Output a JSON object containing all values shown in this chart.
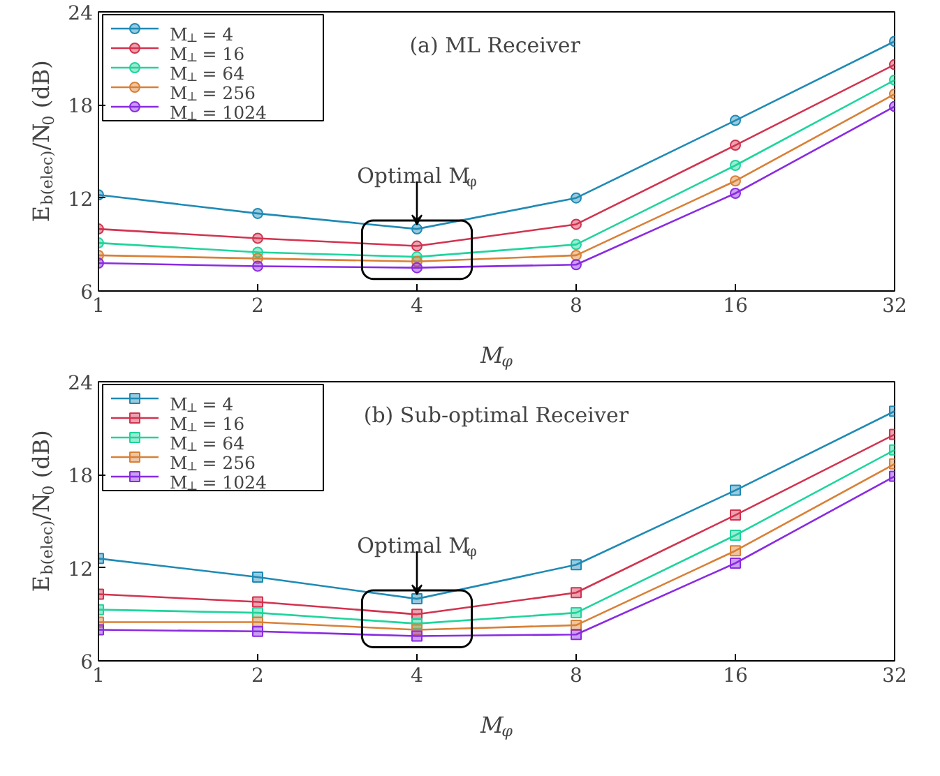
{
  "chart_data": [
    {
      "type": "line",
      "title": "(a) ML Receiver",
      "xlabel": "M$_{φ}$",
      "ylabel": "E$_{b(elec)}$/N$_{0}$ (dB)",
      "x": [
        1,
        2,
        4,
        8,
        16,
        32
      ],
      "log": "x",
      "xlim": [
        1,
        32
      ],
      "xticks": [
        1,
        2,
        4,
        8,
        16,
        32
      ],
      "ylim": [
        6,
        24
      ],
      "yticks": [
        6,
        12,
        18,
        24
      ],
      "grid": false,
      "legend": "top left",
      "marker": "circle",
      "line_style": "solid",
      "annotations": [
        {
          "text": "Optimal M$_{φ}$",
          "x": 4,
          "y": 10.0
        }
      ],
      "series": [
        {
          "name": "M$_{⊥}$ = 4",
          "color": "#1f8ab5",
          "values": [
            12.2,
            11.0,
            10.0,
            12.0,
            17.0,
            22.1
          ]
        },
        {
          "name": "M$_{⊥}$ = 16",
          "color": "#d2334f",
          "values": [
            10.0,
            9.4,
            8.9,
            10.3,
            15.4,
            20.6
          ]
        },
        {
          "name": "M$_{⊥}$ = 64",
          "color": "#1fd49c",
          "values": [
            9.1,
            8.5,
            8.2,
            9.0,
            14.1,
            19.6
          ]
        },
        {
          "name": "M$_{⊥}$ = 256",
          "color": "#d98036",
          "values": [
            8.3,
            8.1,
            7.9,
            8.3,
            13.1,
            18.7
          ]
        },
        {
          "name": "M$_{⊥}$ = 1024",
          "color": "#8a2be2",
          "values": [
            7.8,
            7.6,
            7.5,
            7.7,
            12.3,
            17.9
          ]
        }
      ]
    },
    {
      "type": "line",
      "title": "(b) Sub-optimal Receiver",
      "xlabel": "M$_{φ}$",
      "ylabel": "E$_{b(elec)}$/N$_{0}$ (dB)",
      "x": [
        1,
        2,
        4,
        8,
        16,
        32
      ],
      "log": "x",
      "xlim": [
        1,
        32
      ],
      "xticks": [
        1,
        2,
        4,
        8,
        16,
        32
      ],
      "ylim": [
        6,
        24
      ],
      "yticks": [
        6,
        12,
        18,
        24
      ],
      "grid": false,
      "legend": "top left",
      "marker": "square",
      "line_style": "solid",
      "annotations": [
        {
          "text": "Optimal M$_{φ}$",
          "x": 4,
          "y": 10.0
        }
      ],
      "series": [
        {
          "name": "M$_{⊥}$ = 4",
          "color": "#1f8ab5",
          "values": [
            12.6,
            11.4,
            10.0,
            12.2,
            17.0,
            22.1
          ]
        },
        {
          "name": "M$_{⊥}$ = 16",
          "color": "#d2334f",
          "values": [
            10.3,
            9.8,
            9.0,
            10.4,
            15.4,
            20.6
          ]
        },
        {
          "name": "M$_{⊥}$ = 64",
          "color": "#1fd49c",
          "values": [
            9.3,
            9.1,
            8.4,
            9.1,
            14.1,
            19.6
          ]
        },
        {
          "name": "M$_{⊥}$ = 256",
          "color": "#d98036",
          "values": [
            8.5,
            8.5,
            8.0,
            8.3,
            13.1,
            18.7
          ]
        },
        {
          "name": "M$_{⊥}$ = 1024",
          "color": "#8a2be2",
          "values": [
            8.0,
            7.9,
            7.6,
            7.7,
            12.3,
            17.9
          ]
        }
      ]
    }
  ]
}
